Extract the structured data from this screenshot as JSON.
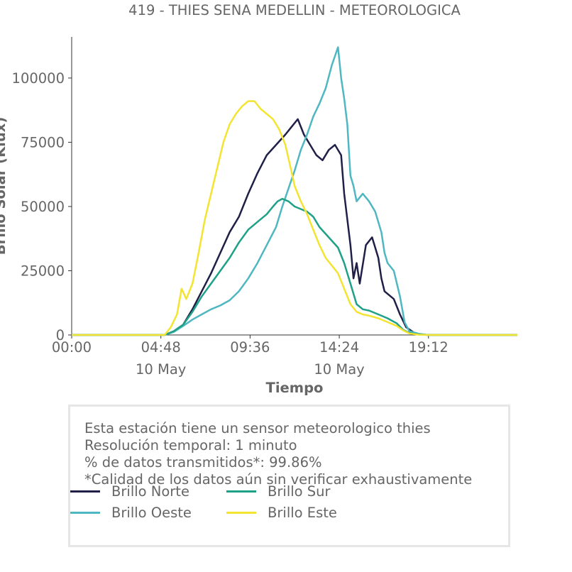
{
  "chart_data": {
    "type": "line",
    "title": "419 - THIES SENA MEDELLIN - METEOROLOGICA",
    "xlabel": "Tiempo",
    "ylabel": "Brillo Solar (Klux)",
    "xlim": [
      0,
      1439
    ],
    "ylim": [
      0,
      116000
    ],
    "x_ticks": [
      {
        "value": 0,
        "label": "00:00",
        "sublabel": ""
      },
      {
        "value": 288,
        "label": "04:48",
        "sublabel": "10 May"
      },
      {
        "value": 576,
        "label": "09:36",
        "sublabel": ""
      },
      {
        "value": 864,
        "label": "14:24",
        "sublabel": "10 May"
      },
      {
        "value": 1152,
        "label": "19:12",
        "sublabel": ""
      }
    ],
    "y_ticks": [
      0,
      25000,
      50000,
      75000,
      100000
    ],
    "grid": false,
    "series": [
      {
        "name": "Brillo Norte",
        "color": "#1f1f47",
        "points": [
          [
            0,
            0
          ],
          [
            300,
            0
          ],
          [
            330,
            1500
          ],
          [
            360,
            4000
          ],
          [
            390,
            10000
          ],
          [
            420,
            17000
          ],
          [
            450,
            24000
          ],
          [
            480,
            32000
          ],
          [
            510,
            40000
          ],
          [
            540,
            46000
          ],
          [
            570,
            55000
          ],
          [
            600,
            63000
          ],
          [
            630,
            70000
          ],
          [
            660,
            74000
          ],
          [
            690,
            78000
          ],
          [
            710,
            81000
          ],
          [
            730,
            84000
          ],
          [
            750,
            78000
          ],
          [
            770,
            74000
          ],
          [
            790,
            70000
          ],
          [
            810,
            68000
          ],
          [
            830,
            72000
          ],
          [
            850,
            74000
          ],
          [
            870,
            70000
          ],
          [
            880,
            55000
          ],
          [
            890,
            45000
          ],
          [
            900,
            35000
          ],
          [
            910,
            22000
          ],
          [
            920,
            28000
          ],
          [
            930,
            20000
          ],
          [
            950,
            35000
          ],
          [
            970,
            38000
          ],
          [
            990,
            30000
          ],
          [
            1000,
            22000
          ],
          [
            1010,
            17000
          ],
          [
            1040,
            14000
          ],
          [
            1060,
            8000
          ],
          [
            1080,
            3000
          ],
          [
            1110,
            500
          ],
          [
            1150,
            0
          ],
          [
            1439,
            0
          ]
        ]
      },
      {
        "name": "Brillo Oeste",
        "color": "#4fb7c1",
        "points": [
          [
            0,
            0
          ],
          [
            300,
            0
          ],
          [
            330,
            1200
          ],
          [
            360,
            3500
          ],
          [
            390,
            6000
          ],
          [
            420,
            8000
          ],
          [
            450,
            10000
          ],
          [
            480,
            11500
          ],
          [
            510,
            13500
          ],
          [
            540,
            17000
          ],
          [
            570,
            22000
          ],
          [
            600,
            28000
          ],
          [
            630,
            35000
          ],
          [
            660,
            42000
          ],
          [
            680,
            50000
          ],
          [
            700,
            57000
          ],
          [
            720,
            64000
          ],
          [
            740,
            72000
          ],
          [
            760,
            78000
          ],
          [
            780,
            85000
          ],
          [
            800,
            90000
          ],
          [
            820,
            96000
          ],
          [
            840,
            105000
          ],
          [
            860,
            112000
          ],
          [
            870,
            100000
          ],
          [
            880,
            92000
          ],
          [
            890,
            82000
          ],
          [
            900,
            62000
          ],
          [
            910,
            58000
          ],
          [
            920,
            52000
          ],
          [
            940,
            55000
          ],
          [
            960,
            52000
          ],
          [
            980,
            48000
          ],
          [
            1000,
            40000
          ],
          [
            1010,
            32000
          ],
          [
            1020,
            28000
          ],
          [
            1040,
            25000
          ],
          [
            1060,
            15000
          ],
          [
            1075,
            5000
          ],
          [
            1090,
            1500
          ],
          [
            1120,
            500
          ],
          [
            1150,
            0
          ],
          [
            1439,
            0
          ]
        ]
      },
      {
        "name": "Brillo Sur",
        "color": "#1fa187",
        "points": [
          [
            0,
            0
          ],
          [
            300,
            0
          ],
          [
            330,
            1500
          ],
          [
            360,
            4000
          ],
          [
            390,
            9000
          ],
          [
            420,
            15000
          ],
          [
            450,
            20000
          ],
          [
            480,
            25000
          ],
          [
            510,
            30000
          ],
          [
            540,
            36000
          ],
          [
            570,
            41000
          ],
          [
            600,
            44000
          ],
          [
            630,
            47000
          ],
          [
            650,
            50000
          ],
          [
            665,
            52000
          ],
          [
            680,
            53000
          ],
          [
            700,
            52000
          ],
          [
            720,
            50000
          ],
          [
            740,
            49000
          ],
          [
            760,
            48000
          ],
          [
            780,
            46000
          ],
          [
            800,
            42000
          ],
          [
            830,
            38000
          ],
          [
            860,
            34000
          ],
          [
            880,
            28000
          ],
          [
            900,
            20000
          ],
          [
            920,
            12000
          ],
          [
            940,
            10000
          ],
          [
            960,
            9500
          ],
          [
            990,
            8000
          ],
          [
            1020,
            6500
          ],
          [
            1050,
            4500
          ],
          [
            1070,
            2000
          ],
          [
            1090,
            800
          ],
          [
            1120,
            200
          ],
          [
            1150,
            0
          ],
          [
            1439,
            0
          ]
        ]
      },
      {
        "name": "Brillo Este",
        "color": "#f4e432",
        "points": [
          [
            0,
            0
          ],
          [
            300,
            0
          ],
          [
            320,
            3000
          ],
          [
            340,
            8000
          ],
          [
            355,
            18000
          ],
          [
            370,
            14000
          ],
          [
            390,
            20000
          ],
          [
            410,
            32000
          ],
          [
            430,
            45000
          ],
          [
            450,
            55000
          ],
          [
            470,
            65000
          ],
          [
            490,
            75000
          ],
          [
            510,
            82000
          ],
          [
            530,
            86000
          ],
          [
            550,
            89000
          ],
          [
            570,
            91000
          ],
          [
            590,
            91000
          ],
          [
            610,
            88000
          ],
          [
            630,
            86000
          ],
          [
            650,
            84000
          ],
          [
            670,
            80000
          ],
          [
            690,
            74000
          ],
          [
            705,
            66000
          ],
          [
            720,
            58000
          ],
          [
            740,
            52000
          ],
          [
            760,
            47000
          ],
          [
            780,
            41000
          ],
          [
            800,
            35000
          ],
          [
            820,
            30000
          ],
          [
            840,
            27000
          ],
          [
            860,
            24000
          ],
          [
            880,
            18000
          ],
          [
            900,
            12000
          ],
          [
            920,
            9000
          ],
          [
            940,
            8000
          ],
          [
            960,
            7500
          ],
          [
            990,
            6500
          ],
          [
            1020,
            5000
          ],
          [
            1050,
            3500
          ],
          [
            1070,
            1800
          ],
          [
            1090,
            600
          ],
          [
            1120,
            100
          ],
          [
            1150,
            0
          ],
          [
            1439,
            0
          ]
        ]
      }
    ]
  },
  "info": {
    "line1": "Esta estación tiene un sensor meteorologico thies",
    "line2": "Resolución temporal: 1 minuto",
    "line3": "% de datos transmitidos*: 99.86%",
    "line4": "*Calidad de los datos aún sin verificar exhaustivamente"
  },
  "legend": [
    {
      "label": "Brillo Norte",
      "color": "#1f1f47"
    },
    {
      "label": "Brillo Sur",
      "color": "#1fa187"
    },
    {
      "label": "Brillo Oeste",
      "color": "#4fb7c1"
    },
    {
      "label": "Brillo Este",
      "color": "#f4e432"
    }
  ]
}
